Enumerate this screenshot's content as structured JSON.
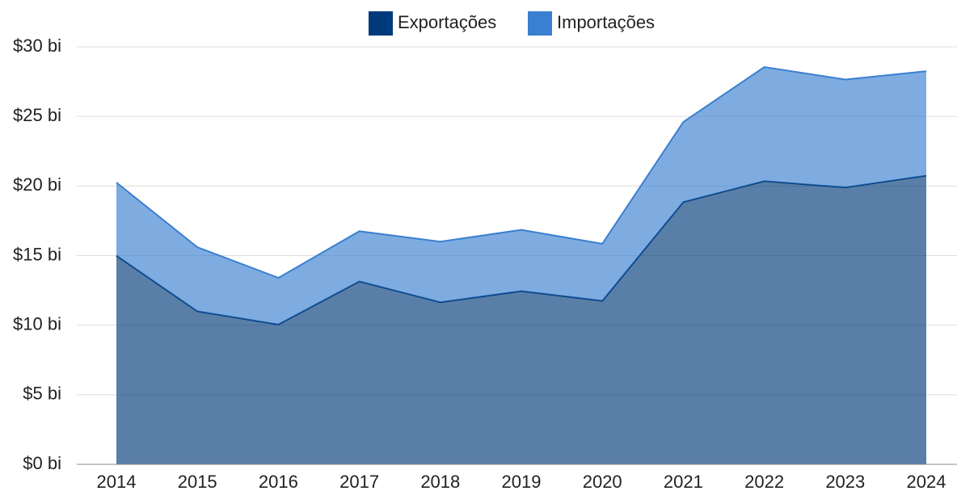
{
  "chart_data": {
    "type": "area",
    "stacked": true,
    "categories": [
      "2014",
      "2015",
      "2016",
      "2017",
      "2018",
      "2019",
      "2020",
      "2021",
      "2022",
      "2023",
      "2024"
    ],
    "series": [
      {
        "name": "Exportações",
        "color": "#003a7a",
        "values": [
          15.0,
          11.0,
          10.05,
          13.15,
          11.65,
          12.45,
          11.75,
          18.85,
          20.35,
          19.9,
          20.75
        ]
      },
      {
        "name": "Importações",
        "color": "#3a7fd0",
        "values": [
          5.25,
          4.6,
          3.35,
          3.6,
          4.35,
          4.4,
          4.1,
          5.75,
          8.2,
          7.75,
          7.5
        ]
      }
    ],
    "ylim": [
      0,
      30
    ],
    "yticks": [
      {
        "value": 0,
        "label": "$0 bi"
      },
      {
        "value": 5,
        "label": "$5 bi"
      },
      {
        "value": 10,
        "label": "$10 bi"
      },
      {
        "value": 15,
        "label": "$15 bi"
      },
      {
        "value": 20,
        "label": "$20 bi"
      },
      {
        "value": 25,
        "label": "$25 bi"
      },
      {
        "value": 30,
        "label": "$30 bi"
      }
    ],
    "grid": true,
    "legend": "top"
  }
}
